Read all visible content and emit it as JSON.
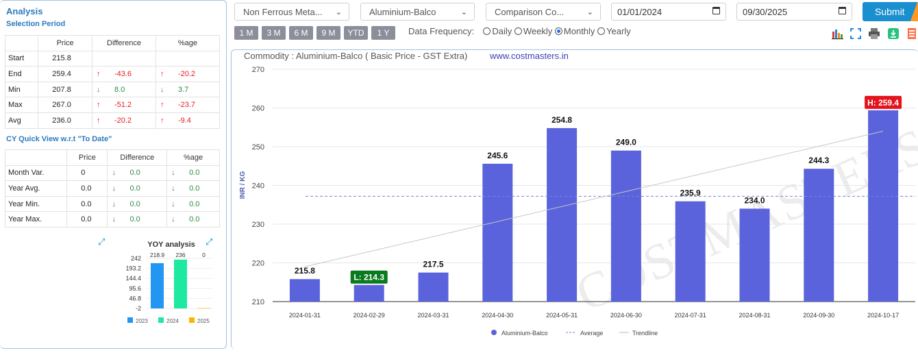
{
  "analysis": {
    "title": "Analysis",
    "selection_period": "Selection Period",
    "headers": [
      "",
      "Price",
      "Difference",
      "%age"
    ],
    "rows": [
      {
        "label": "Start",
        "price": "215.8",
        "diff": "",
        "pct": "",
        "dir": ""
      },
      {
        "label": "End",
        "price": "259.4",
        "diff": "-43.6",
        "pct": "-20.2",
        "dir": "up"
      },
      {
        "label": "Min",
        "price": "207.8",
        "diff": "8.0",
        "pct": "3.7",
        "dir": "down"
      },
      {
        "label": "Max",
        "price": "267.0",
        "diff": "-51.2",
        "pct": "-23.7",
        "dir": "up"
      },
      {
        "label": "Avg",
        "price": "236.0",
        "diff": "-20.2",
        "pct": "-9.4",
        "dir": "up"
      }
    ],
    "cy_title": "CY Quick View w.r.t \"To Date\"",
    "cy_headers": [
      "",
      "Price",
      "Difference",
      "%age"
    ],
    "cy_rows": [
      {
        "label": "Month Var.",
        "price": "0",
        "diff": "0.0",
        "pct": "0.0"
      },
      {
        "label": "Year Avg.",
        "price": "0.0",
        "diff": "0.0",
        "pct": "0.0"
      },
      {
        "label": "Year Min.",
        "price": "0.0",
        "diff": "0.0",
        "pct": "0.0"
      },
      {
        "label": "Year Max.",
        "price": "0.0",
        "diff": "0.0",
        "pct": "0.0"
      }
    ]
  },
  "yoy": {
    "title": "YOY analysis",
    "yticks": [
      "242",
      "193.2",
      "144.4",
      "95.6",
      "46.8",
      "-2"
    ],
    "years": [
      "2023",
      "2024",
      "2025"
    ],
    "values": [
      218.9,
      236,
      0
    ],
    "value_labels": [
      "218.9",
      "236",
      "0"
    ],
    "colors": [
      "#2196f3",
      "#1de9a0",
      "#ffb300"
    ]
  },
  "controls": {
    "category": "Non Ferrous Meta...",
    "commodity": "Aluminium-Balco",
    "comparison": "Comparison Co...",
    "from_date": "01/01/2024",
    "to_date": "09/30/2025",
    "submit": "Submit",
    "ranges": [
      "1 M",
      "3 M",
      "6 M",
      "9 M",
      "YTD",
      "1 Y"
    ],
    "freq_label": "Data Frequency:",
    "freqs": [
      "Daily",
      "Weekly",
      "Monthly",
      "Yearly"
    ],
    "freq_selected": "Monthly"
  },
  "chart_data": {
    "type": "bar",
    "title": "Commodity : Aluminium-Balco ( Basic Price - GST Extra)",
    "site": "www.costmasters.in",
    "watermark": "COSTMASTERS",
    "ylabel": "INR / KG",
    "ylim": [
      210,
      270
    ],
    "yticks": [
      210,
      220,
      230,
      240,
      250,
      260,
      270
    ],
    "categories": [
      "2024-01-31",
      "2024-02-29",
      "2024-03-31",
      "2024-04-30",
      "2024-05-31",
      "2024-06-30",
      "2024-07-31",
      "2024-08-31",
      "2024-09-30",
      "2024-10-17"
    ],
    "series": [
      {
        "name": "Aluminium-Balco",
        "values": [
          215.8,
          214.3,
          217.5,
          245.6,
          254.8,
          249.0,
          235.9,
          234.0,
          244.3,
          259.4
        ],
        "color": "#5b63dc"
      }
    ],
    "value_labels": [
      "215.8",
      "L: 214.3",
      "217.5",
      "245.6",
      "254.8",
      "249.0",
      "235.9",
      "234.0",
      "244.3",
      "H: 259.4"
    ],
    "average": 237.2,
    "trendline": [
      219.0,
      254.0
    ],
    "legend": [
      "Aluminium-Balco",
      "Average",
      "Trendline"
    ],
    "legend_position": "bottom",
    "grid": true
  }
}
